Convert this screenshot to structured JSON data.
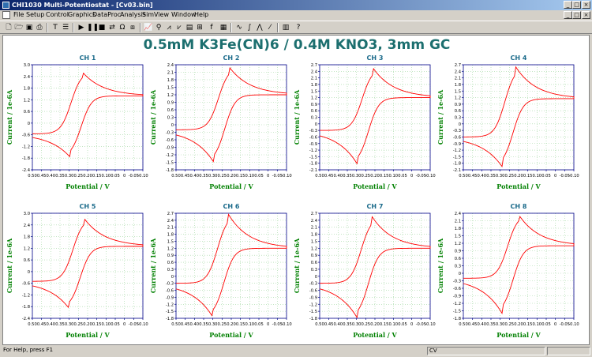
{
  "window": {
    "title": "CHI1030 Multi-Potentiostat - [Cv03.bin]",
    "min": "_",
    "max": "□",
    "close": "×"
  },
  "menu": [
    "File",
    "Setup",
    "Control",
    "Graphics",
    "DataProc",
    "Analysis",
    "Sim",
    "View",
    "Window",
    "Help"
  ],
  "toolbar": {
    "icons": [
      "new-icon",
      "open-icon",
      "save-icon",
      "print-icon",
      "text-icon",
      "param-icon",
      "run-icon",
      "pause-icon",
      "stop-icon",
      "reverse-icon",
      "iR-icon",
      "cell-icon",
      "graph-icon",
      "zoom-icon",
      "overlay-icon",
      "add-icon",
      "color-icon",
      "font-icon",
      "fp-icon",
      "smooth-icon",
      "derivative-icon",
      "integrate-icon",
      "peak-icon",
      "filter-icon",
      "help-icon"
    ]
  },
  "main_title": "0.5mM K3Fe(CN)6 / 0.4M KNO3, 3mm GC",
  "xlabel": "Potential / V",
  "ylabel": "Current / 1e-6A",
  "x_tick_labels": [
    "0.50",
    "0.45",
    "0.40",
    "0.35",
    "0.30",
    "0.25",
    "0.20",
    "0.15",
    "0.10",
    "0.05",
    "0",
    "-0.05",
    "-0.10"
  ],
  "charts": [
    {
      "title": "CH 1",
      "yticks": [
        "3.0",
        "2.4",
        "1.8",
        "1.2",
        "0.6",
        "0",
        "-0.6",
        "-1.2",
        "-1.8",
        "-2.4"
      ],
      "ylim": [
        -2.4,
        3.0
      ],
      "ipa": 2.65,
      "epa": 0.23,
      "ipc": -1.75,
      "epc": 0.295,
      "start": -0.55,
      "vertex": 1.4
    },
    {
      "title": "CH 2",
      "yticks": [
        "2.4",
        "2.1",
        "1.8",
        "1.5",
        "1.2",
        "0.9",
        "0.6",
        "0.3",
        "0",
        "-0.3",
        "-0.6",
        "-0.9",
        "-1.2",
        "-1.5",
        "-1.8"
      ],
      "ylim": [
        -1.8,
        2.4
      ],
      "ipa": 2.3,
      "epa": 0.21,
      "ipc": -1.5,
      "epc": 0.295,
      "start": -0.2,
      "vertex": 1.2
    },
    {
      "title": "CH 3",
      "yticks": [
        "2.7",
        "2.4",
        "2.1",
        "1.8",
        "1.5",
        "1.2",
        "0.9",
        "0.6",
        "0.3",
        "0",
        "-0.3",
        "-0.6",
        "-0.9",
        "-1.2",
        "-1.5",
        "-1.8",
        "-2.1"
      ],
      "ylim": [
        -2.1,
        2.7
      ],
      "ipa": 2.55,
      "epa": 0.21,
      "ipc": -1.85,
      "epc": 0.295,
      "start": -0.3,
      "vertex": 1.2
    },
    {
      "title": "CH 4",
      "yticks": [
        "2.7",
        "2.4",
        "2.1",
        "1.8",
        "1.5",
        "1.2",
        "0.9",
        "0.6",
        "0.3",
        "0",
        "-0.3",
        "-0.6",
        "-0.9",
        "-1.2",
        "-1.5",
        "-1.8",
        "-2.1"
      ],
      "ylim": [
        -2.1,
        2.7
      ],
      "ipa": 2.6,
      "epa": 0.215,
      "ipc": -1.95,
      "epc": 0.29,
      "start": -0.6,
      "vertex": 1.15
    },
    {
      "title": "CH 5",
      "yticks": [
        "3.0",
        "2.4",
        "1.8",
        "1.2",
        "0.6",
        "0",
        "-0.6",
        "-1.2",
        "-1.8",
        "-2.4"
      ],
      "ylim": [
        -2.4,
        3.0
      ],
      "ipa": 2.75,
      "epa": 0.22,
      "ipc": -1.9,
      "epc": 0.3,
      "start": -0.5,
      "vertex": 1.3
    },
    {
      "title": "CH 6",
      "yticks": [
        "2.7",
        "2.4",
        "2.1",
        "1.8",
        "1.5",
        "1.2",
        "0.9",
        "0.6",
        "0.3",
        "0",
        "-0.3",
        "-0.6",
        "-0.9",
        "-1.2",
        "-1.5",
        "-1.8"
      ],
      "ylim": [
        -1.8,
        2.7
      ],
      "ipa": 2.65,
      "epa": 0.215,
      "ipc": -1.75,
      "epc": 0.3,
      "start": -0.3,
      "vertex": 1.2
    },
    {
      "title": "CH 7",
      "yticks": [
        "2.7",
        "2.4",
        "2.1",
        "1.8",
        "1.5",
        "1.2",
        "0.9",
        "0.6",
        "0.3",
        "0",
        "-0.3",
        "-0.6",
        "-0.9",
        "-1.2",
        "-1.5",
        "-1.8"
      ],
      "ylim": [
        -1.8,
        2.7
      ],
      "ipa": 2.55,
      "epa": 0.215,
      "ipc": -1.8,
      "epc": 0.295,
      "start": -0.3,
      "vertex": 1.2
    },
    {
      "title": "CH 8",
      "yticks": [
        "2.4",
        "2.1",
        "1.8",
        "1.5",
        "1.2",
        "0.9",
        "0.6",
        "0.3",
        "0",
        "-0.3",
        "-0.6",
        "-0.9",
        "-1.2",
        "-1.5",
        "-1.8"
      ],
      "ylim": [
        -1.8,
        2.4
      ],
      "ipa": 2.35,
      "epa": 0.2,
      "ipc": -1.6,
      "epc": 0.29,
      "start": -0.2,
      "vertex": 1.1
    }
  ],
  "status": {
    "help": "For Help, press F1",
    "mode": "CV"
  },
  "colors": {
    "curve": "#ff0000",
    "title": "#1c6f6f",
    "axis_label": "#008000",
    "chart_title": "#1a6a8a",
    "axis": "#00008b",
    "grid": "#9fd69f"
  },
  "chart_data": [
    {
      "type": "line",
      "title": "CH 1",
      "xlabel": "Potential / V",
      "ylabel": "Current / 1e-6A",
      "xlim": [
        0.5,
        -0.1
      ],
      "ylim": [
        -2.4,
        3.0
      ],
      "anodic_peak": [
        0.23,
        2.65
      ],
      "cathodic_peak": [
        0.295,
        -1.75
      ],
      "grid": true
    },
    {
      "type": "line",
      "title": "CH 2",
      "xlabel": "Potential / V",
      "ylabel": "Current / 1e-6A",
      "xlim": [
        0.5,
        -0.1
      ],
      "ylim": [
        -1.8,
        2.4
      ],
      "anodic_peak": [
        0.21,
        2.3
      ],
      "cathodic_peak": [
        0.295,
        -1.5
      ],
      "grid": true
    },
    {
      "type": "line",
      "title": "CH 3",
      "xlabel": "Potential / V",
      "ylabel": "Current / 1e-6A",
      "xlim": [
        0.5,
        -0.1
      ],
      "ylim": [
        -2.1,
        2.7
      ],
      "anodic_peak": [
        0.21,
        2.55
      ],
      "cathodic_peak": [
        0.295,
        -1.85
      ],
      "grid": true
    },
    {
      "type": "line",
      "title": "CH 4",
      "xlabel": "Potential / V",
      "ylabel": "Current / 1e-6A",
      "xlim": [
        0.5,
        -0.1
      ],
      "ylim": [
        -2.1,
        2.7
      ],
      "anodic_peak": [
        0.215,
        2.6
      ],
      "cathodic_peak": [
        0.29,
        -1.95
      ],
      "grid": true
    },
    {
      "type": "line",
      "title": "CH 5",
      "xlabel": "Potential / V",
      "ylabel": "Current / 1e-6A",
      "xlim": [
        0.5,
        -0.1
      ],
      "ylim": [
        -2.4,
        3.0
      ],
      "anodic_peak": [
        0.22,
        2.75
      ],
      "cathodic_peak": [
        0.3,
        -1.9
      ],
      "grid": true
    },
    {
      "type": "line",
      "title": "CH 6",
      "xlabel": "Potential / V",
      "ylabel": "Current / 1e-6A",
      "xlim": [
        0.5,
        -0.1
      ],
      "ylim": [
        -1.8,
        2.7
      ],
      "anodic_peak": [
        0.215,
        2.65
      ],
      "cathodic_peak": [
        0.3,
        -1.75
      ],
      "grid": true
    },
    {
      "type": "line",
      "title": "CH 7",
      "xlabel": "Potential / V",
      "ylabel": "Current / 1e-6A",
      "xlim": [
        0.5,
        -0.1
      ],
      "ylim": [
        -1.8,
        2.7
      ],
      "anodic_peak": [
        0.215,
        2.55
      ],
      "cathodic_peak": [
        0.295,
        -1.8
      ],
      "grid": true
    },
    {
      "type": "line",
      "title": "CH 8",
      "xlabel": "Potential / V",
      "ylabel": "Current / 1e-6A",
      "xlim": [
        0.5,
        -0.1
      ],
      "ylim": [
        -1.8,
        2.4
      ],
      "anodic_peak": [
        0.2,
        2.35
      ],
      "cathodic_peak": [
        0.29,
        -1.6
      ],
      "grid": true
    }
  ]
}
